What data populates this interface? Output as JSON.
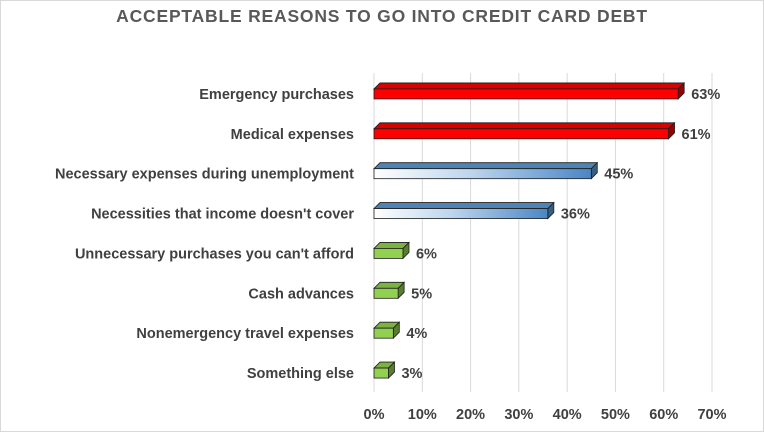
{
  "chart_data": {
    "type": "bar",
    "orientation": "horizontal",
    "title": "ACCEPTABLE REASONS TO GO INTO CREDIT CARD DEBT",
    "categories": [
      "Emergency purchases",
      "Medical expenses",
      "Necessary expenses during unemployment",
      "Necessities that income doesn't cover",
      "Unnecessary purchases you can't afford",
      "Cash advances",
      "Nonemergency travel expenses",
      "Something else"
    ],
    "values": [
      63,
      61,
      45,
      36,
      6,
      5,
      4,
      3
    ],
    "value_labels": [
      "63%",
      "61%",
      "45%",
      "36%",
      "6%",
      "5%",
      "4%",
      "3%"
    ],
    "bar_colors": [
      "#ff0000",
      "#ff0000",
      "#5b9bd5",
      "#5b9bd5",
      "#92d050",
      "#92d050",
      "#92d050",
      "#92d050"
    ],
    "xlim": [
      0,
      70
    ],
    "xticks": [
      "0%",
      "10%",
      "20%",
      "30%",
      "40%",
      "50%",
      "60%",
      "70%"
    ],
    "grid": true,
    "legend": "none"
  }
}
